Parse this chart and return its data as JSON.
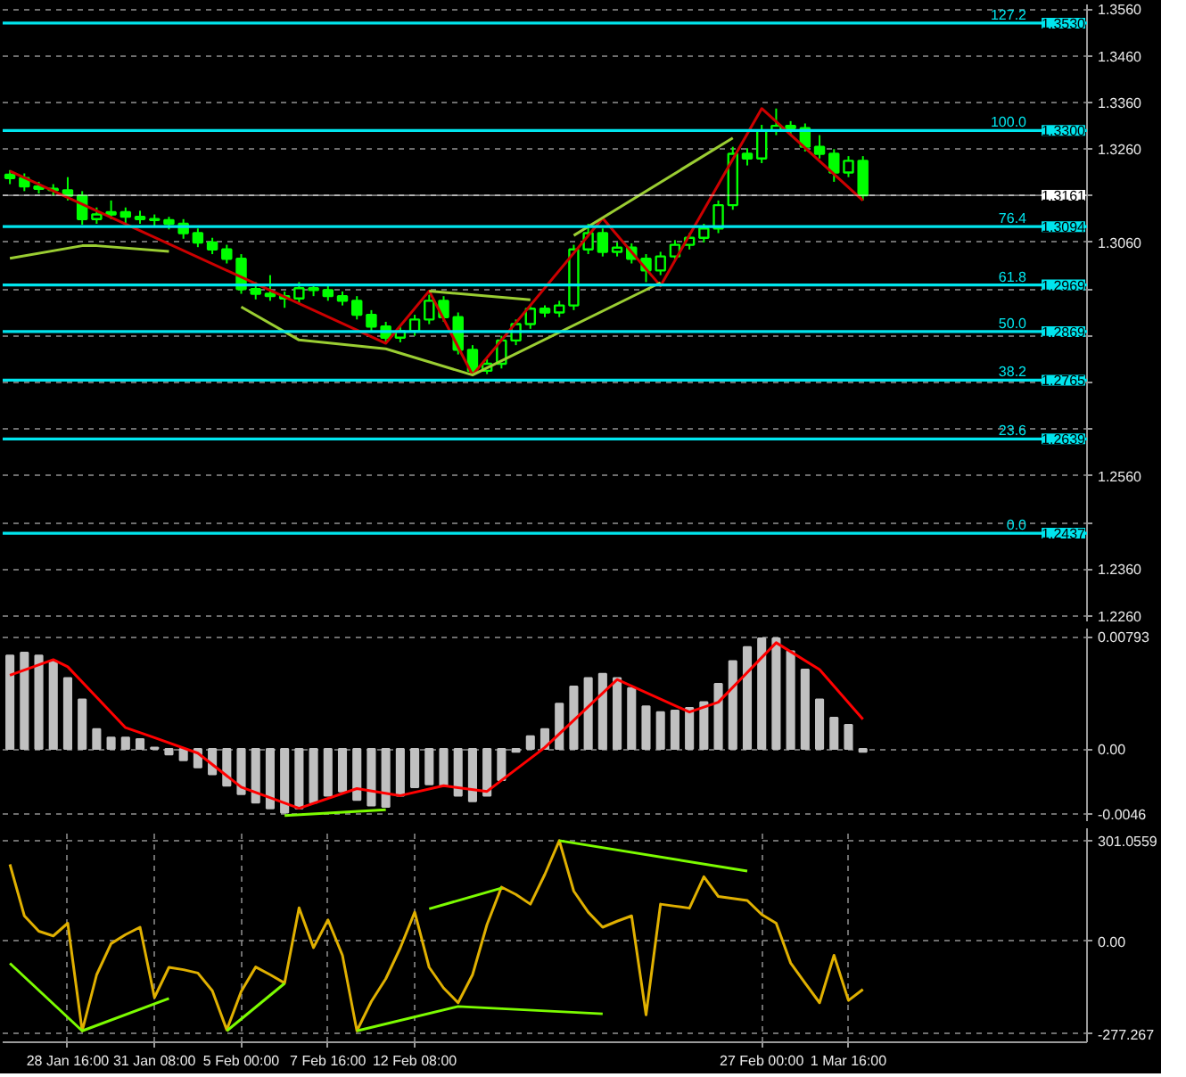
{
  "chart_data": [
    {
      "type": "candlestick",
      "color": "#00ff00",
      "ylim": [
        1.2248,
        1.357
      ],
      "grid": true,
      "tick_labels": "y",
      "categories": [
        null,
        null,
        null,
        null,
        null,
        null,
        null,
        null,
        null,
        null,
        null,
        null,
        null,
        null,
        null,
        null,
        null,
        null,
        null,
        null,
        null,
        null,
        null,
        null,
        null,
        null,
        null,
        null,
        null,
        null,
        null,
        null,
        null,
        null,
        null,
        null,
        null,
        null,
        null,
        null,
        null,
        null,
        null,
        null,
        null,
        null,
        null,
        null,
        null,
        null,
        null,
        null,
        null,
        null,
        null,
        null,
        null,
        null,
        null,
        null,
        null,
        null,
        null,
        null,
        null,
        null,
        null,
        null,
        null,
        null,
        null,
        null,
        null,
        null,
        null
      ],
      "ohlc": [
        [
          1.3205,
          1.3215,
          1.3185,
          1.3198
        ],
        [
          1.3198,
          1.3208,
          1.317,
          1.318
        ],
        [
          1.318,
          1.319,
          1.3165,
          1.3175
        ],
        [
          1.3175,
          1.3185,
          1.316,
          1.3172
        ],
        [
          1.3172,
          1.32,
          1.315,
          1.316
        ],
        [
          1.316,
          1.317,
          1.3098,
          1.311
        ],
        [
          1.311,
          1.3135,
          1.31,
          1.312
        ],
        [
          1.312,
          1.315,
          1.311,
          1.3125
        ],
        [
          1.3125,
          1.3135,
          1.31,
          1.3115
        ],
        [
          1.3115,
          1.3128,
          1.31,
          1.311
        ],
        [
          1.311,
          1.312,
          1.3095,
          1.3108
        ],
        [
          1.3108,
          1.3115,
          1.3088,
          1.31
        ],
        [
          1.31,
          1.311,
          1.3068,
          1.308
        ],
        [
          1.308,
          1.309,
          1.305,
          1.306
        ],
        [
          1.306,
          1.307,
          1.3035,
          1.3045
        ],
        [
          1.3045,
          1.3055,
          1.3015,
          1.3025
        ],
        [
          1.3025,
          1.3035,
          1.295,
          1.296
        ],
        [
          1.296,
          1.2975,
          1.2938,
          1.295
        ],
        [
          1.295,
          1.299,
          1.2935,
          1.2945
        ],
        [
          1.2945,
          1.2955,
          1.292,
          1.294
        ],
        [
          1.294,
          1.2975,
          1.293,
          1.2962
        ],
        [
          1.2962,
          1.2972,
          1.2945,
          1.2958
        ],
        [
          1.2958,
          1.2968,
          1.2935,
          1.2945
        ],
        [
          1.2945,
          1.2955,
          1.2925,
          1.2935
        ],
        [
          1.2935,
          1.2945,
          1.2895,
          1.2905
        ],
        [
          1.2905,
          1.2915,
          1.287,
          1.288
        ],
        [
          1.288,
          1.289,
          1.2846,
          1.2856
        ],
        [
          1.2856,
          1.288,
          1.2846,
          1.287
        ],
        [
          1.287,
          1.2905,
          1.286,
          1.2895
        ],
        [
          1.2895,
          1.2948,
          1.2885,
          1.2935
        ],
        [
          1.2935,
          1.2945,
          1.289,
          1.29
        ],
        [
          1.29,
          1.291,
          1.282,
          1.283
        ],
        [
          1.283,
          1.284,
          1.2776,
          1.2785
        ],
        [
          1.2785,
          1.281,
          1.2778,
          1.28
        ],
        [
          1.28,
          1.286,
          1.279,
          1.285
        ],
        [
          1.285,
          1.2895,
          1.284,
          1.2885
        ],
        [
          1.2885,
          1.2928,
          1.2875,
          1.2918
        ],
        [
          1.2918,
          1.2925,
          1.29,
          1.291
        ],
        [
          1.291,
          1.2935,
          1.29,
          1.2925
        ],
        [
          1.2925,
          1.3055,
          1.2915,
          1.3045
        ],
        [
          1.3045,
          1.31,
          1.3035,
          1.308
        ],
        [
          1.308,
          1.309,
          1.303,
          1.304
        ],
        [
          1.304,
          1.306,
          1.303,
          1.3049
        ],
        [
          1.3049,
          1.3058,
          1.3015,
          1.3025
        ],
        [
          1.3025,
          1.3035,
          1.2975,
          1.3
        ],
        [
          1.3,
          1.304,
          1.299,
          1.303
        ],
        [
          1.303,
          1.3065,
          1.302,
          1.3055
        ],
        [
          1.3055,
          1.308,
          1.3045,
          1.307
        ],
        [
          1.307,
          1.31,
          1.306,
          1.309
        ],
        [
          1.309,
          1.315,
          1.308,
          1.314
        ],
        [
          1.314,
          1.3265,
          1.313,
          1.325
        ],
        [
          1.325,
          1.3262,
          1.3225,
          1.324
        ],
        [
          1.324,
          1.3312,
          1.323,
          1.33
        ],
        [
          1.33,
          1.3347,
          1.329,
          1.331
        ],
        [
          1.331,
          1.332,
          1.329,
          1.3305
        ],
        [
          1.3305,
          1.3315,
          1.3255,
          1.3265
        ],
        [
          1.3265,
          1.329,
          1.324,
          1.325
        ],
        [
          1.325,
          1.326,
          1.319,
          1.321
        ],
        [
          1.321,
          1.3245,
          1.32,
          1.3235
        ],
        [
          1.3235,
          1.3245,
          1.315,
          1.3161
        ],
        null,
        null,
        null,
        null,
        null,
        null,
        null,
        null,
        null,
        null,
        null,
        null,
        null,
        null,
        null
      ],
      "series": [
        {
          "type": "line",
          "color": "#cc0000",
          "values": [
            1.3213,
            null,
            null,
            null,
            null,
            null,
            null,
            null,
            null,
            null,
            null,
            null,
            null,
            null,
            null,
            null,
            null,
            null,
            null,
            null,
            null,
            null,
            null,
            null,
            null,
            null,
            1.2844,
            null,
            null,
            1.2956,
            null,
            null,
            1.2776,
            null,
            null,
            null,
            null,
            null,
            null,
            null,
            null,
            1.3112,
            null,
            null,
            null,
            1.2967,
            null,
            null,
            null,
            null,
            null,
            null,
            1.3347,
            null,
            null,
            null,
            null,
            null,
            null,
            1.315,
            null,
            null,
            null,
            null,
            null,
            null,
            null,
            null,
            null,
            null,
            null,
            null,
            null,
            null,
            null
          ]
        },
        {
          "type": "line",
          "color": "#9acd32",
          "values": [
            1.3026,
            null,
            null,
            null,
            null,
            1.3053,
            1.3053,
            null,
            null,
            null,
            null,
            1.3041,
            null,
            null,
            null,
            null,
            null,
            null,
            null,
            null,
            null,
            null,
            null,
            null,
            null,
            null,
            null,
            null,
            null,
            null,
            null,
            null,
            null,
            null,
            null,
            null,
            null,
            null,
            null,
            null,
            null,
            null,
            null,
            null,
            null,
            null,
            null,
            null,
            null,
            null,
            null,
            null,
            null,
            null,
            null,
            null,
            null,
            null,
            null,
            null,
            null,
            null,
            null,
            null,
            null,
            null,
            null,
            null,
            null,
            null,
            null,
            null,
            null,
            null,
            null
          ]
        },
        {
          "type": "line",
          "color": "#9acd32",
          "values": [
            null,
            null,
            null,
            null,
            null,
            null,
            null,
            null,
            null,
            null,
            null,
            null,
            null,
            null,
            null,
            null,
            1.2922,
            null,
            null,
            null,
            1.2851,
            null,
            null,
            null,
            null,
            null,
            1.2832,
            null,
            null,
            null,
            null,
            null,
            1.2776,
            null,
            null,
            null,
            null,
            null,
            null,
            null,
            null,
            null,
            null,
            null,
            null,
            1.2974,
            null,
            null,
            null,
            null,
            null,
            null,
            null,
            null,
            null,
            null,
            null,
            null,
            null,
            null,
            null,
            null,
            null,
            null,
            null,
            null,
            null,
            null,
            null,
            null,
            null,
            null,
            null,
            null,
            null
          ]
        },
        {
          "type": "line",
          "color": "#9acd32",
          "values": [
            null,
            null,
            null,
            null,
            null,
            null,
            null,
            null,
            null,
            null,
            null,
            null,
            null,
            null,
            null,
            null,
            null,
            null,
            null,
            null,
            null,
            null,
            null,
            null,
            null,
            null,
            null,
            null,
            null,
            1.2956,
            null,
            null,
            null,
            null,
            null,
            null,
            1.2937,
            null,
            null,
            null,
            null,
            null,
            null,
            null,
            null,
            null,
            null,
            null,
            null,
            null,
            null,
            null,
            null,
            null,
            null,
            null,
            null,
            null,
            null,
            null,
            null,
            null,
            null,
            null,
            null,
            null,
            null,
            null,
            null,
            null,
            null,
            null,
            null,
            null,
            null
          ]
        },
        {
          "type": "line",
          "color": "#9acd32",
          "values": [
            null,
            null,
            null,
            null,
            null,
            null,
            null,
            null,
            null,
            null,
            null,
            null,
            null,
            null,
            null,
            null,
            null,
            null,
            null,
            null,
            null,
            null,
            null,
            null,
            null,
            null,
            null,
            null,
            null,
            null,
            null,
            null,
            null,
            null,
            null,
            null,
            null,
            null,
            null,
            1.3075,
            null,
            null,
            null,
            null,
            null,
            null,
            null,
            null,
            null,
            null,
            1.3284,
            null,
            null,
            null,
            null,
            null,
            null,
            null,
            null,
            null,
            null,
            null,
            null,
            null,
            null,
            null,
            null,
            null,
            null,
            null,
            null,
            null,
            null,
            null,
            null
          ]
        }
      ],
      "ref_lines": [
        {
          "axis": "y",
          "value": 1.353,
          "label": "1.3530",
          "color": "#00e5ee"
        },
        {
          "axis": "y",
          "value": 1.33,
          "label": "1.3300",
          "color": "#00e5ee"
        },
        {
          "axis": "y",
          "value": 1.3094,
          "label": "1.3094",
          "color": "#00e5ee"
        },
        {
          "axis": "y",
          "value": 1.2969,
          "label": "1.2969",
          "color": "#00e5ee"
        },
        {
          "axis": "y",
          "value": 1.2869,
          "label": "1.2869",
          "color": "#00e5ee"
        },
        {
          "axis": "y",
          "value": 1.2765,
          "label": "1.2765",
          "color": "#00e5ee"
        },
        {
          "axis": "y",
          "value": 1.2639,
          "label": "1.2639",
          "color": "#00e5ee"
        },
        {
          "axis": "y",
          "value": 1.2437,
          "label": "1.2437",
          "color": "#00e5ee"
        },
        {
          "axis": "y",
          "value": 1.3161,
          "label": "1.3161",
          "color": "#ffffff"
        }
      ],
      "annotations": [
        {
          "text": "127.2",
          "y": 1.353
        },
        {
          "text": "100.0",
          "y": 1.33
        },
        {
          "text": "76.4",
          "y": 1.3094
        },
        {
          "text": "61.8",
          "y": 1.2969
        },
        {
          "text": "50.0",
          "y": 1.2869
        },
        {
          "text": "38.2",
          "y": 1.2765
        },
        {
          "text": "23.6",
          "y": 1.2639
        },
        {
          "text": "0.0",
          "y": 1.2437
        }
      ],
      "yticks": [
        {
          "value": 1.356,
          "label": "1.3560"
        },
        {
          "value": 1.346,
          "label": "1.3460"
        },
        {
          "value": 1.336,
          "label": "1.3360"
        },
        {
          "value": 1.326,
          "label": "1.3260"
        },
        {
          "value": 1.316,
          "label": null
        },
        {
          "value": 1.306,
          "label": "1.3060"
        },
        {
          "value": 1.296,
          "label": null
        },
        {
          "value": 1.286,
          "label": null
        },
        {
          "value": 1.276,
          "label": null
        },
        {
          "value": 1.266,
          "label": null
        },
        {
          "value": 1.256,
          "label": "1.2560"
        },
        {
          "value": 1.246,
          "label": null
        },
        {
          "value": 1.236,
          "label": "1.2360"
        },
        {
          "value": 1.226,
          "label": "1.2260"
        }
      ]
    },
    {
      "type": "bar",
      "color": "#c0c0c0",
      "ylim": [
        -0.0051,
        0.0085
      ],
      "grid": true,
      "tick_labels": "y",
      "categories": [
        null,
        null,
        null,
        null,
        null,
        null,
        null,
        null,
        null,
        null,
        null,
        null,
        null,
        null,
        null,
        null,
        null,
        null,
        null,
        null,
        null,
        null,
        null,
        null,
        null,
        null,
        null,
        null,
        null,
        null,
        null,
        null,
        null,
        null,
        null,
        null,
        null,
        null,
        null,
        null,
        null,
        null,
        null,
        null,
        null,
        null,
        null,
        null,
        null,
        null,
        null,
        null,
        null,
        null,
        null,
        null,
        null,
        null,
        null,
        null,
        null,
        null,
        null,
        null,
        null,
        null,
        null,
        null,
        null,
        null,
        null,
        null,
        null,
        null,
        null
      ],
      "values": [
        0.0066,
        0.0068,
        0.0066,
        0.0062,
        0.005,
        0.0035,
        0.0014,
        0.0008,
        0.0008,
        0.0007,
        0.0001,
        -0.0004,
        -0.0008,
        -0.0013,
        -0.0018,
        -0.0026,
        -0.0032,
        -0.0038,
        -0.0042,
        -0.0045,
        -0.0042,
        -0.0038,
        -0.0033,
        -0.003,
        -0.0036,
        -0.004,
        -0.0041,
        -0.0033,
        -0.0027,
        -0.0025,
        -0.0026,
        -0.0033,
        -0.0037,
        -0.0033,
        -0.0022,
        -0.0002,
        0.0009,
        0.0014,
        0.0032,
        0.0044,
        0.005,
        0.0053,
        0.005,
        0.0043,
        0.003,
        0.0026,
        0.0027,
        0.0029,
        0.0033,
        0.0046,
        0.0062,
        0.0072,
        0.0078,
        0.0078,
        0.0069,
        0.0056,
        0.0035,
        0.0022,
        0.0017,
        -0.0002,
        null,
        null,
        null,
        null,
        null,
        null,
        null,
        null,
        null,
        null,
        null,
        null,
        null,
        null,
        null
      ],
      "series": [
        {
          "type": "line",
          "color": "#ff0000",
          "values": [
            0.0052,
            null,
            null,
            0.0063,
            0.0058,
            null,
            null,
            null,
            0.0015,
            null,
            0.0008,
            null,
            null,
            -0.0003,
            null,
            null,
            -0.0027,
            null,
            null,
            null,
            -0.0042,
            null,
            null,
            null,
            -0.0028,
            null,
            null,
            -0.0033,
            null,
            null,
            -0.0026,
            null,
            null,
            -0.003,
            null,
            null,
            null,
            0.0001,
            null,
            null,
            null,
            null,
            0.0049,
            null,
            null,
            null,
            null,
            0.0026,
            null,
            0.0033,
            null,
            null,
            null,
            0.0075,
            null,
            null,
            0.0056,
            null,
            null,
            0.0021,
            null,
            null,
            null,
            null,
            null,
            null,
            null,
            null,
            null,
            null,
            null,
            null,
            null,
            null,
            null
          ]
        },
        {
          "type": "line",
          "color": "#7cfc00",
          "values": [
            null,
            null,
            null,
            null,
            null,
            null,
            null,
            null,
            null,
            null,
            null,
            null,
            null,
            null,
            null,
            null,
            null,
            null,
            null,
            -0.0047,
            null,
            null,
            null,
            null,
            null,
            null,
            -0.0043,
            null,
            null,
            null,
            null,
            null,
            null,
            null,
            null,
            null,
            null,
            null,
            null,
            null,
            null,
            null,
            null,
            null,
            null,
            null,
            null,
            null,
            null,
            null,
            null,
            null,
            null,
            null,
            null,
            null,
            null,
            null,
            null,
            null,
            null,
            null,
            null,
            null,
            null,
            null,
            null,
            null,
            null,
            null,
            null,
            null,
            null,
            null,
            null
          ]
        }
      ],
      "yticks": [
        {
          "value": 0.00793,
          "label": "0.00793"
        },
        {
          "value": 0,
          "label": "0.00"
        },
        {
          "value": -0.0046,
          "label": "-0.0046"
        }
      ]
    },
    {
      "type": "line",
      "ylim": [
        -302,
        338
      ],
      "grid": true,
      "categories": [
        null,
        null,
        null,
        null,
        "28 Jan 16:00",
        null,
        null,
        null,
        null,
        null,
        "31 Jan 08:00",
        null,
        null,
        null,
        null,
        null,
        "5 Feb 00:00",
        null,
        null,
        null,
        null,
        null,
        "7 Feb 16:00",
        null,
        null,
        null,
        null,
        null,
        "12 Feb 08:00",
        null,
        null,
        null,
        null,
        null,
        null,
        null,
        null,
        null,
        null,
        null,
        null,
        null,
        null,
        null,
        null,
        null,
        null,
        null,
        null,
        null,
        null,
        null,
        "27 Feb 00:00",
        null,
        null,
        null,
        null,
        null,
        "1 Mar 16:00",
        null,
        null,
        null,
        null,
        null,
        null,
        null,
        null,
        null,
        null,
        null,
        null,
        null,
        null,
        null,
        null
      ],
      "series": [
        {
          "color": "#e0b000",
          "values": [
            230,
            76,
            30,
            16,
            54,
            -268,
            -100,
            -7,
            20,
            42,
            -168,
            -78,
            -85,
            -95,
            -148,
            -265,
            -150,
            -77,
            -100,
            -125,
            100,
            -19,
            64,
            -42,
            -268,
            -180,
            -112,
            -20,
            87,
            -78,
            -140,
            -184,
            -100,
            50,
            162,
            140,
            111,
            200,
            301,
            150,
            87,
            42,
            60,
            76,
            -220,
            111,
            105,
            99,
            193,
            134,
            128,
            122,
            80,
            54,
            -65,
            -125,
            -184,
            -42,
            -177,
            -144,
            null,
            null,
            null,
            null,
            null,
            null,
            null,
            null,
            null,
            null,
            null,
            null,
            null,
            null,
            null
          ]
        },
        {
          "color": "#7cfc00",
          "values": [
            -66,
            null,
            null,
            null,
            null,
            -268,
            null,
            null,
            null,
            null,
            null,
            -171,
            null,
            null,
            null,
            null,
            null,
            null,
            null,
            null,
            null,
            null,
            null,
            null,
            null,
            null,
            null,
            null,
            null,
            null,
            null,
            null,
            null,
            null,
            null,
            null,
            null,
            null,
            null,
            null,
            null,
            null,
            null,
            null,
            null,
            null,
            null,
            null,
            null,
            null,
            null,
            null,
            null,
            null,
            null,
            null,
            null,
            null,
            null,
            null,
            null,
            null,
            null,
            null,
            null,
            null,
            null,
            null,
            null,
            null,
            null,
            null,
            null,
            null,
            null
          ]
        },
        {
          "color": "#7cfc00",
          "values": [
            null,
            null,
            null,
            null,
            null,
            null,
            null,
            null,
            null,
            null,
            null,
            null,
            null,
            null,
            null,
            -268,
            null,
            null,
            null,
            -126,
            null,
            null,
            null,
            null,
            null,
            null,
            null,
            null,
            null,
            null,
            null,
            null,
            null,
            null,
            null,
            null,
            null,
            null,
            null,
            null,
            null,
            null,
            null,
            null,
            null,
            null,
            null,
            null,
            null,
            null,
            null,
            null,
            null,
            null,
            null,
            null,
            null,
            null,
            null,
            null,
            null,
            null,
            null,
            null,
            null,
            null,
            null,
            null,
            null,
            null,
            null,
            null,
            null,
            null,
            null
          ]
        },
        {
          "color": "#7cfc00",
          "values": [
            null,
            null,
            null,
            null,
            null,
            null,
            null,
            null,
            null,
            null,
            null,
            null,
            null,
            null,
            null,
            null,
            null,
            null,
            null,
            null,
            null,
            null,
            null,
            null,
            -268,
            null,
            null,
            null,
            null,
            null,
            null,
            -195,
            null,
            null,
            null,
            null,
            null,
            null,
            null,
            null,
            null,
            -217,
            null,
            null,
            null,
            null,
            null,
            null,
            null,
            null,
            null,
            null,
            null,
            null,
            null,
            null,
            null,
            null,
            null,
            null,
            null,
            null,
            null,
            null,
            null,
            null,
            null,
            null,
            null,
            null,
            null,
            null,
            null,
            null,
            null
          ]
        },
        {
          "color": "#7cfc00",
          "values": [
            null,
            null,
            null,
            null,
            null,
            null,
            null,
            null,
            null,
            null,
            null,
            null,
            null,
            null,
            null,
            null,
            null,
            null,
            null,
            null,
            null,
            null,
            null,
            null,
            null,
            null,
            null,
            null,
            null,
            97,
            null,
            null,
            null,
            null,
            159,
            null,
            null,
            null,
            null,
            null,
            null,
            null,
            null,
            null,
            null,
            null,
            null,
            null,
            null,
            null,
            null,
            null,
            null,
            null,
            null,
            null,
            null,
            null,
            null,
            null,
            null,
            null,
            null,
            null,
            null,
            null,
            null,
            null,
            null,
            null,
            null,
            null,
            null,
            null,
            null
          ]
        },
        {
          "color": "#7cfc00",
          "values": [
            null,
            null,
            null,
            null,
            null,
            null,
            null,
            null,
            null,
            null,
            null,
            null,
            null,
            null,
            null,
            null,
            null,
            null,
            null,
            null,
            null,
            null,
            null,
            null,
            null,
            null,
            null,
            null,
            null,
            null,
            null,
            null,
            null,
            null,
            null,
            null,
            null,
            null,
            301,
            null,
            null,
            null,
            null,
            null,
            null,
            null,
            null,
            null,
            null,
            null,
            null,
            210,
            null,
            null,
            null,
            null,
            null,
            null,
            null,
            null,
            null,
            null,
            null,
            null,
            null,
            null,
            null,
            null,
            null,
            null,
            null,
            null,
            null,
            null,
            null
          ]
        }
      ],
      "yticks": [
        {
          "value": 301.0559,
          "label": "301.0559"
        },
        {
          "value": 0,
          "label": "0.00"
        },
        {
          "value": -277.267,
          "label": "-277.267"
        }
      ]
    }
  ]
}
